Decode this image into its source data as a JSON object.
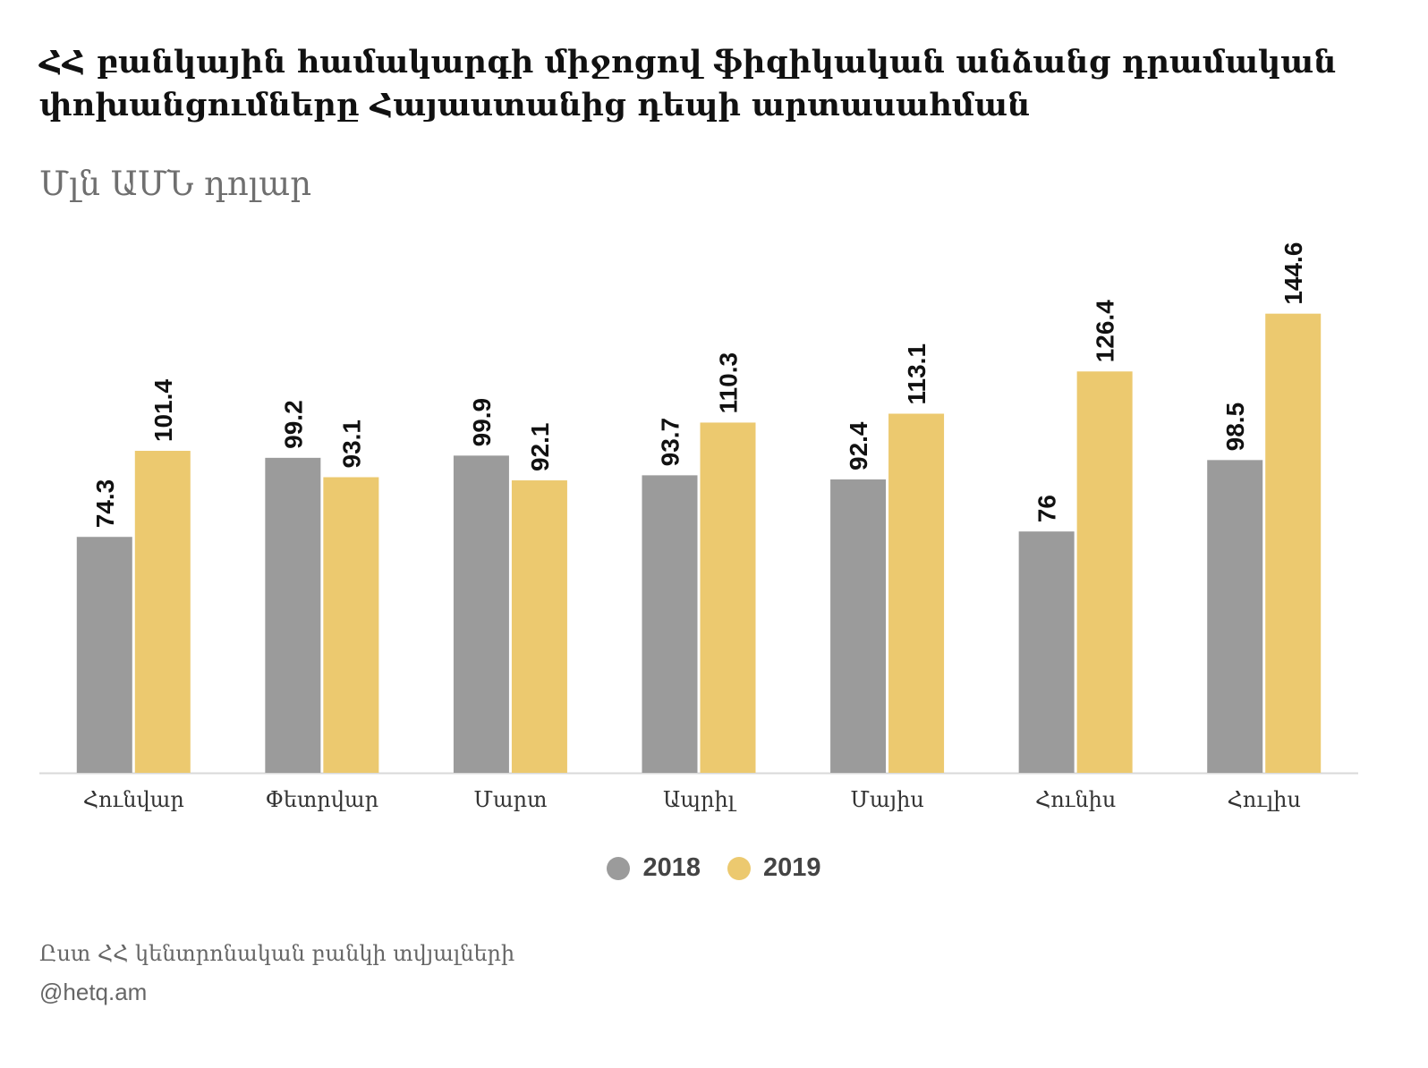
{
  "title": "ՀՀ բանկային համակարգի միջոցով ֆիզիկական անձանց դրամական փոխանցումները Հայաստանից դեպի արտասահման",
  "subtitle": "Մլն ԱՄՆ դոլար",
  "source": "Ըստ ՀՀ կենտրոնական բանկի տվյալների",
  "credit": "@hetq.am",
  "colors": {
    "2018": "#9b9b9b",
    "2019": "#ecc96f",
    "axis": "#d9d9d9"
  },
  "chart_data": {
    "type": "bar",
    "categories": [
      "Հունվար",
      "Փետրվար",
      "Մարտ",
      "Ապրիլ",
      "Մայիս",
      "Հունիս",
      "Հուլիս"
    ],
    "series": [
      {
        "name": "2018",
        "values": [
          74.3,
          99.2,
          99.9,
          93.7,
          92.4,
          76,
          98.5
        ]
      },
      {
        "name": "2019",
        "values": [
          101.4,
          93.1,
          92.1,
          110.3,
          113.1,
          126.4,
          144.6
        ]
      }
    ],
    "ylim": [
      0,
      160
    ],
    "grid": false,
    "legend": "bottom-center"
  }
}
